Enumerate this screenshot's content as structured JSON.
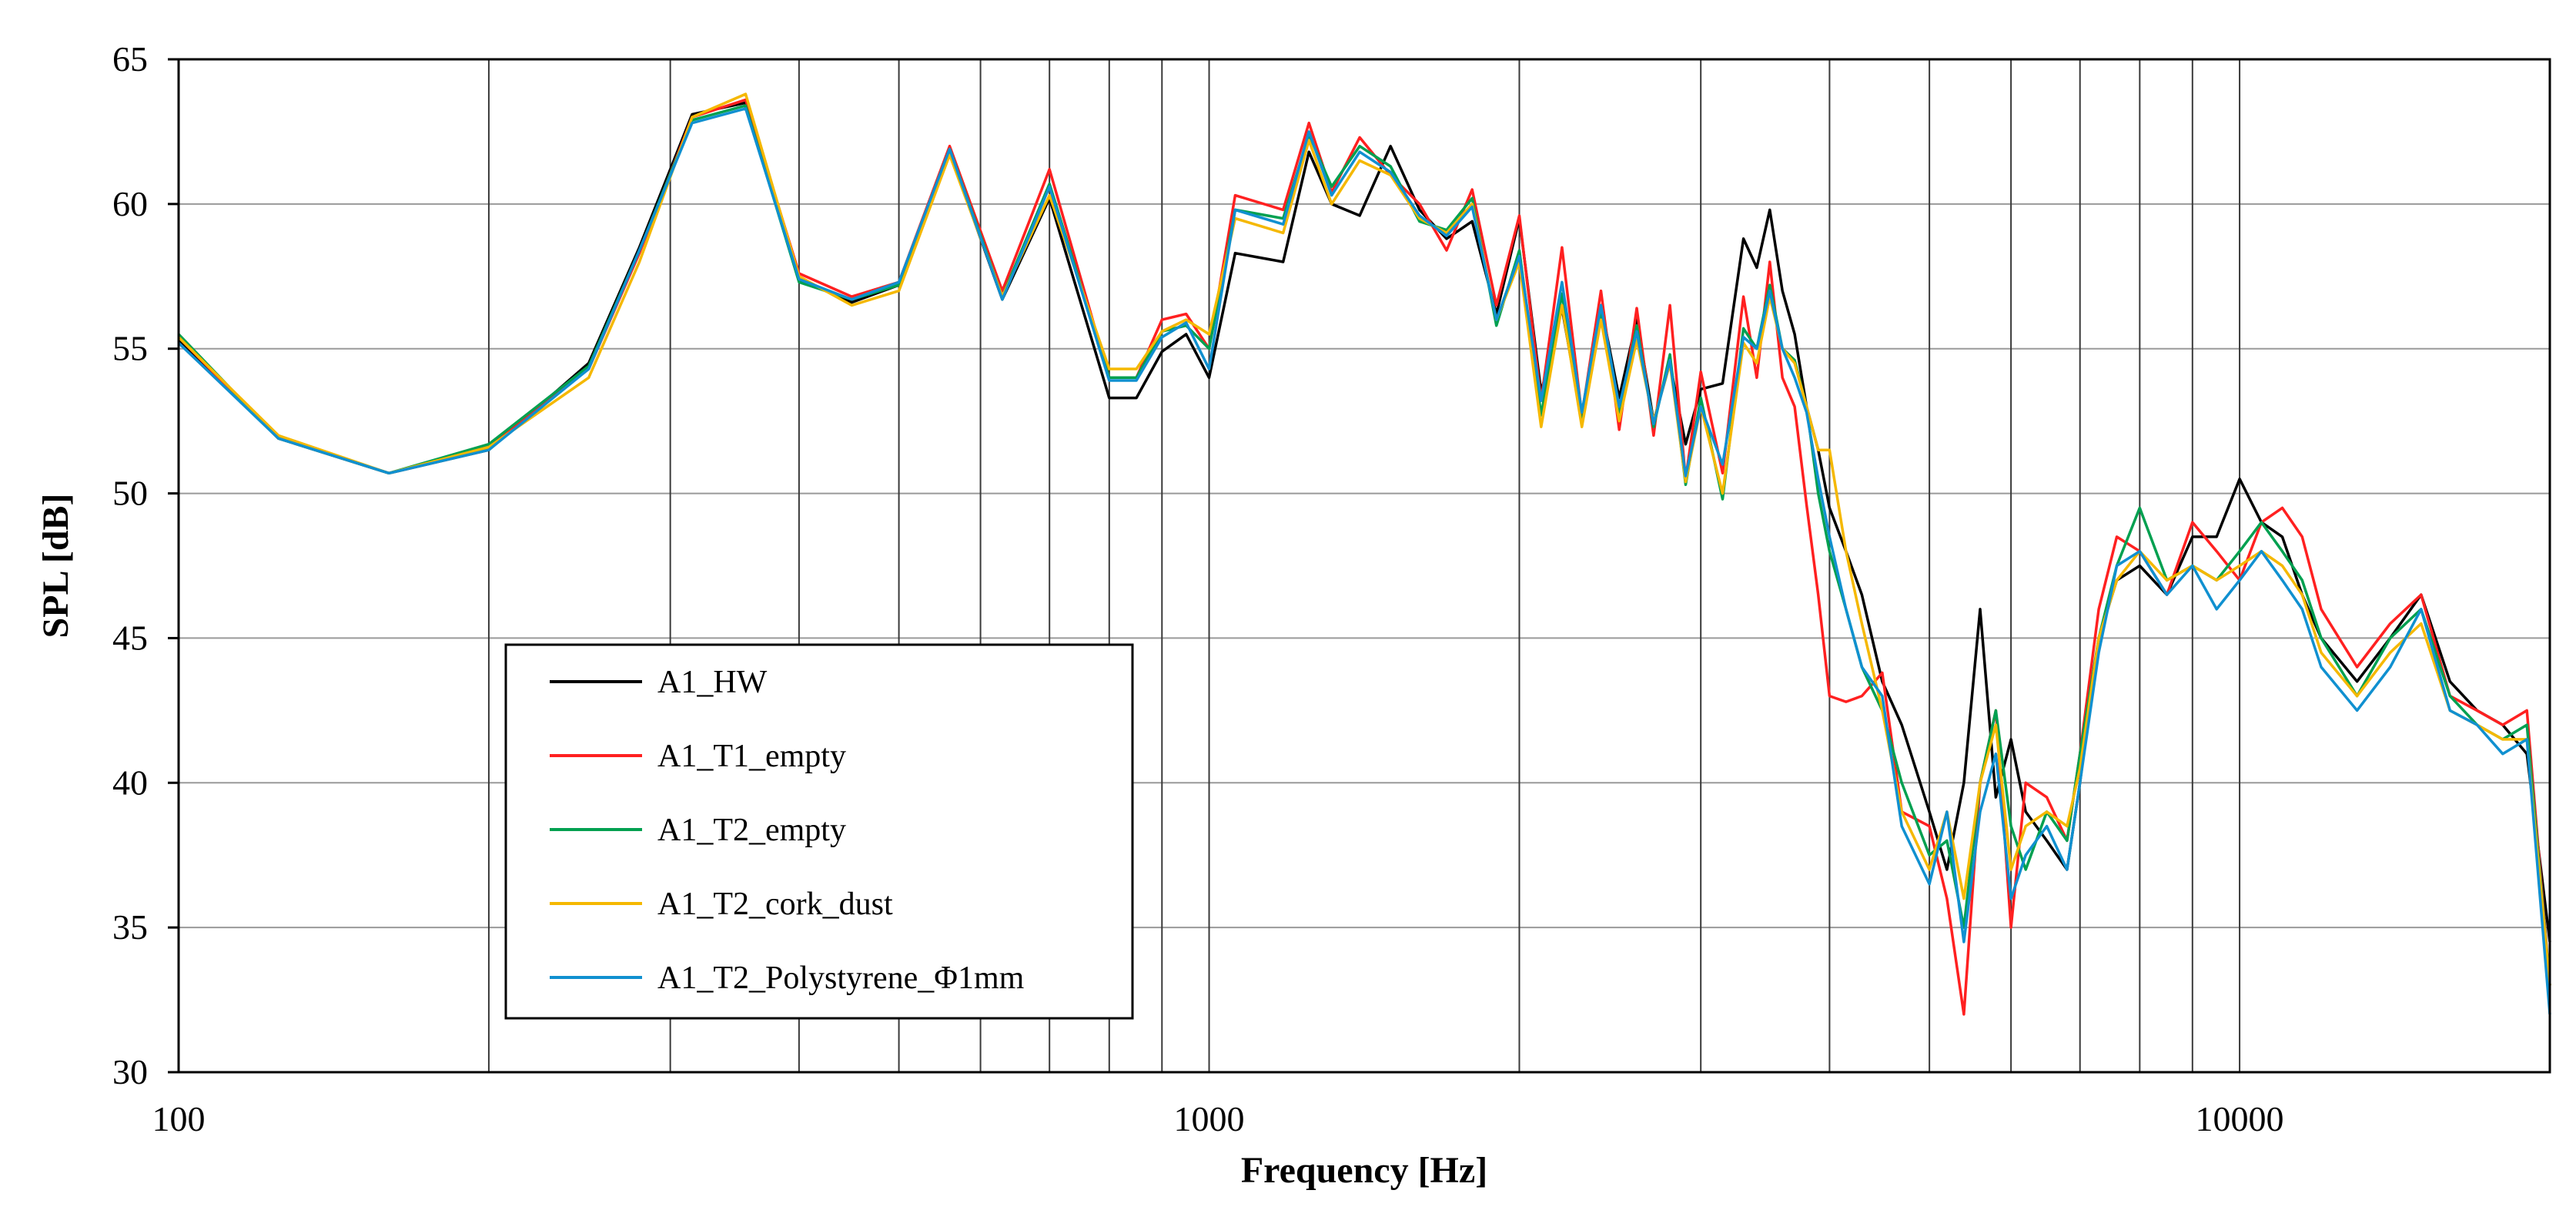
{
  "chart_data": {
    "type": "line",
    "title": "",
    "xlabel": "Frequency [Hz]",
    "ylabel": "SPL [dB]",
    "xscale": "log",
    "xlim": [
      100,
      20000
    ],
    "ylim": [
      30,
      65
    ],
    "yticks": [
      30,
      35,
      40,
      45,
      50,
      55,
      60,
      65
    ],
    "xtick_labels": [
      {
        "value": 100,
        "label": "100"
      },
      {
        "value": 1000,
        "label": "1000"
      },
      {
        "value": 10000,
        "label": "10000"
      }
    ],
    "grid": true,
    "legend_position": "bottom-left",
    "series": [
      {
        "name": "A1_HW",
        "color": "#000000",
        "x": [
          100,
          125,
          160,
          200,
          250,
          280,
          315,
          355,
          400,
          450,
          500,
          560,
          630,
          700,
          800,
          850,
          900,
          950,
          1000,
          1060,
          1180,
          1250,
          1315,
          1400,
          1500,
          1600,
          1700,
          1800,
          1900,
          2000,
          2100,
          2200,
          2300,
          2400,
          2500,
          2600,
          2700,
          2800,
          2900,
          3000,
          3150,
          3300,
          3400,
          3500,
          3600,
          3700,
          3800,
          3900,
          4000,
          4150,
          4300,
          4500,
          4700,
          5000,
          5200,
          5400,
          5600,
          5800,
          6000,
          6200,
          6500,
          6800,
          7000,
          7300,
          7600,
          8000,
          8500,
          9000,
          9500,
          10000,
          10500,
          11000,
          11500,
          12000,
          13000,
          14000,
          15000,
          16000,
          17000,
          18000,
          19000,
          20000
        ],
        "values": [
          55.3,
          51.9,
          50.7,
          51.5,
          54.5,
          58.5,
          63.1,
          63.5,
          57.4,
          56.6,
          57.2,
          61.8,
          56.7,
          60.2,
          53.3,
          53.3,
          54.9,
          55.5,
          54.0,
          58.3,
          58.0,
          61.8,
          60.0,
          59.6,
          62.0,
          59.8,
          58.8,
          59.4,
          56.2,
          59.5,
          53.5,
          56.4,
          52.5,
          56.5,
          53.3,
          56.0,
          52.5,
          54.5,
          51.7,
          53.6,
          53.8,
          58.8,
          57.8,
          59.8,
          57.0,
          55.5,
          53.0,
          51.5,
          49.5,
          48.0,
          46.5,
          43.5,
          42.0,
          39.0,
          37.0,
          40.0,
          46.0,
          39.5,
          41.5,
          39.0,
          38.0,
          37.0,
          40.0,
          45.0,
          47.0,
          47.5,
          46.5,
          48.5,
          48.5,
          50.5,
          49.0,
          48.5,
          46.5,
          45.0,
          43.5,
          45.0,
          46.5,
          43.5,
          42.5,
          42.0,
          41.0,
          34.5
        ]
      },
      {
        "name": "A1_T1_empty",
        "color": "#ff2020",
        "x": [
          100,
          125,
          160,
          200,
          250,
          280,
          315,
          355,
          400,
          450,
          500,
          560,
          630,
          700,
          800,
          850,
          900,
          950,
          1000,
          1060,
          1180,
          1250,
          1315,
          1400,
          1500,
          1600,
          1700,
          1800,
          1900,
          2000,
          2100,
          2200,
          2300,
          2400,
          2500,
          2600,
          2700,
          2800,
          2900,
          3000,
          3150,
          3300,
          3400,
          3500,
          3600,
          3700,
          3800,
          3900,
          4000,
          4150,
          4300,
          4500,
          4700,
          5000,
          5200,
          5400,
          5600,
          5800,
          6000,
          6200,
          6500,
          6800,
          7000,
          7300,
          7600,
          8000,
          8500,
          9000,
          9500,
          10000,
          10500,
          11000,
          11500,
          12000,
          13000,
          14000,
          15000,
          16000,
          17000,
          18000,
          19000,
          20000
        ],
        "values": [
          55.4,
          51.9,
          50.7,
          51.6,
          54.3,
          58.3,
          63.0,
          63.6,
          57.6,
          56.8,
          57.3,
          62.0,
          57.0,
          61.2,
          54.0,
          54.0,
          56.0,
          56.2,
          55.0,
          60.3,
          59.8,
          62.8,
          60.4,
          62.3,
          61.0,
          60.0,
          58.4,
          60.5,
          56.5,
          59.6,
          53.2,
          58.5,
          52.7,
          57.0,
          52.2,
          56.4,
          52.0,
          56.5,
          50.5,
          54.2,
          50.7,
          56.8,
          54.0,
          58.0,
          54.0,
          53.0,
          49.6,
          46.5,
          43.0,
          42.8,
          43.0,
          43.8,
          39.0,
          38.5,
          36.0,
          32.0,
          40.0,
          42.5,
          35.0,
          40.0,
          39.5,
          38.0,
          41.0,
          46.0,
          48.5,
          48.0,
          46.5,
          49.0,
          48.0,
          47.0,
          49.0,
          49.5,
          48.5,
          46.0,
          44.0,
          45.5,
          46.5,
          43.0,
          42.5,
          42.0,
          42.5,
          33.0
        ]
      },
      {
        "name": "A1_T2_empty",
        "color": "#00a050",
        "x": [
          100,
          125,
          160,
          200,
          250,
          280,
          315,
          355,
          400,
          450,
          500,
          560,
          630,
          700,
          800,
          850,
          900,
          950,
          1000,
          1060,
          1180,
          1250,
          1315,
          1400,
          1500,
          1600,
          1700,
          1800,
          1900,
          2000,
          2100,
          2200,
          2300,
          2400,
          2500,
          2600,
          2700,
          2800,
          2900,
          3000,
          3150,
          3300,
          3400,
          3500,
          3600,
          3700,
          3800,
          3900,
          4000,
          4150,
          4300,
          4500,
          4700,
          5000,
          5200,
          5400,
          5600,
          5800,
          6000,
          6200,
          6500,
          6800,
          7000,
          7300,
          7600,
          8000,
          8500,
          9000,
          9500,
          10000,
          10500,
          11000,
          11500,
          12000,
          13000,
          14000,
          15000,
          16000,
          17000,
          18000,
          19000,
          20000
        ],
        "values": [
          55.5,
          51.9,
          50.7,
          51.7,
          54.4,
          58.4,
          62.9,
          63.4,
          57.3,
          56.7,
          57.2,
          61.9,
          56.8,
          60.7,
          54.0,
          54.0,
          55.6,
          55.8,
          55.0,
          59.8,
          59.5,
          62.4,
          60.6,
          62.0,
          61.3,
          59.4,
          59.1,
          60.2,
          55.8,
          58.4,
          52.7,
          56.9,
          52.4,
          56.3,
          52.8,
          55.8,
          52.3,
          54.8,
          50.3,
          53.3,
          49.8,
          55.7,
          55.0,
          57.2,
          55.0,
          54.6,
          53.0,
          50.0,
          48.0,
          46.0,
          44.0,
          42.5,
          40.0,
          37.5,
          38.0,
          35.0,
          40.0,
          42.5,
          38.5,
          37.0,
          39.0,
          38.0,
          41.0,
          45.0,
          47.5,
          49.5,
          47.0,
          47.5,
          47.0,
          48.0,
          49.0,
          48.0,
          47.0,
          45.0,
          43.0,
          45.0,
          46.0,
          43.0,
          42.0,
          41.5,
          42.0,
          33.0
        ]
      },
      {
        "name": "A1_T2_cork_dust",
        "color": "#f5b800",
        "x": [
          100,
          125,
          160,
          200,
          250,
          280,
          315,
          355,
          400,
          450,
          500,
          560,
          630,
          700,
          800,
          850,
          900,
          950,
          1000,
          1060,
          1180,
          1250,
          1315,
          1400,
          1500,
          1600,
          1700,
          1800,
          1900,
          2000,
          2100,
          2200,
          2300,
          2400,
          2500,
          2600,
          2700,
          2800,
          2900,
          3000,
          3150,
          3300,
          3400,
          3500,
          3600,
          3700,
          3800,
          3900,
          4000,
          4150,
          4300,
          4500,
          4700,
          5000,
          5200,
          5400,
          5600,
          5800,
          6000,
          6200,
          6500,
          6800,
          7000,
          7300,
          7600,
          8000,
          8500,
          9000,
          9500,
          10000,
          10500,
          11000,
          11500,
          12000,
          13000,
          14000,
          15000,
          16000,
          17000,
          18000,
          19000,
          20000
        ],
        "values": [
          55.4,
          52.0,
          50.7,
          51.6,
          54.0,
          58.0,
          63.0,
          63.8,
          57.5,
          56.5,
          57.0,
          61.7,
          56.8,
          60.3,
          54.3,
          54.3,
          55.6,
          56.0,
          55.5,
          59.5,
          59.0,
          62.2,
          60.0,
          61.5,
          61.0,
          59.5,
          59.0,
          60.0,
          56.0,
          58.0,
          52.3,
          56.5,
          52.3,
          56.0,
          52.5,
          55.3,
          52.5,
          54.5,
          50.4,
          53.0,
          50.0,
          55.2,
          54.5,
          56.8,
          55.0,
          54.5,
          53.0,
          51.5,
          51.5,
          48.0,
          45.5,
          42.5,
          39.0,
          37.0,
          39.0,
          36.0,
          40.0,
          42.0,
          37.0,
          38.5,
          39.0,
          38.5,
          40.5,
          45.0,
          47.0,
          48.0,
          47.0,
          47.5,
          47.0,
          47.5,
          48.0,
          47.5,
          46.5,
          44.5,
          43.0,
          44.5,
          45.5,
          42.5,
          42.0,
          41.5,
          41.5,
          33.0
        ]
      },
      {
        "name": "A1_T2_Polystyrene_Φ1mm",
        "color": "#1090d0",
        "x": [
          100,
          125,
          160,
          200,
          250,
          280,
          315,
          355,
          400,
          450,
          500,
          560,
          630,
          700,
          800,
          850,
          900,
          950,
          1000,
          1060,
          1180,
          1250,
          1315,
          1400,
          1500,
          1600,
          1700,
          1800,
          1900,
          2000,
          2100,
          2200,
          2300,
          2400,
          2500,
          2600,
          2700,
          2800,
          2900,
          3000,
          3150,
          3300,
          3400,
          3500,
          3600,
          3700,
          3800,
          3900,
          4000,
          4150,
          4300,
          4500,
          4700,
          5000,
          5200,
          5400,
          5600,
          5800,
          6000,
          6200,
          6500,
          6800,
          7000,
          7300,
          7600,
          8000,
          8500,
          9000,
          9500,
          10000,
          10500,
          11000,
          11500,
          12000,
          13000,
          14000,
          15000,
          16000,
          17000,
          18000,
          19000,
          20000
        ],
        "values": [
          55.2,
          51.9,
          50.7,
          51.5,
          54.3,
          58.4,
          62.8,
          63.3,
          57.4,
          56.7,
          57.3,
          61.9,
          56.7,
          60.6,
          53.9,
          53.9,
          55.4,
          55.9,
          54.3,
          59.8,
          59.3,
          62.5,
          60.3,
          61.8,
          61.1,
          59.6,
          58.9,
          59.9,
          56.0,
          58.2,
          53.2,
          57.3,
          52.8,
          56.5,
          53.0,
          55.6,
          52.4,
          54.6,
          50.6,
          53.0,
          51.0,
          55.4,
          55.0,
          57.0,
          55.0,
          54.0,
          52.8,
          50.5,
          48.5,
          46.0,
          44.0,
          43.0,
          38.5,
          36.5,
          39.0,
          34.5,
          39.0,
          41.0,
          36.0,
          37.5,
          38.5,
          37.0,
          40.0,
          44.5,
          47.5,
          48.0,
          46.5,
          47.5,
          46.0,
          47.0,
          48.0,
          47.0,
          46.0,
          44.0,
          42.5,
          44.0,
          46.0,
          42.5,
          42.0,
          41.0,
          41.5,
          32.0
        ]
      }
    ]
  }
}
